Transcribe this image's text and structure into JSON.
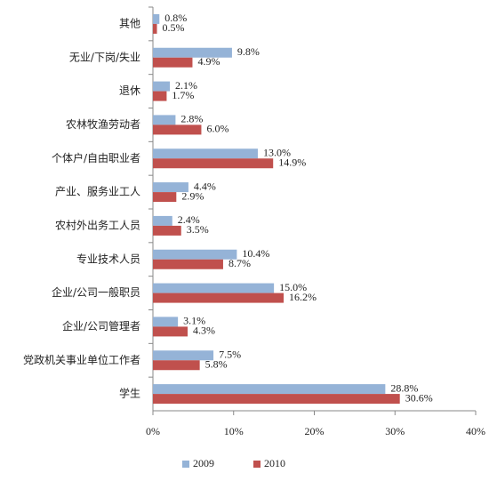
{
  "chart_data": {
    "type": "hbar",
    "categories": [
      "其他",
      "无业/下岗/失业",
      "退休",
      "农林牧渔劳动者",
      "个体户/自由职业者",
      "产业、服务业工人",
      "农村外出务工人员",
      "专业技术人员",
      "企业/公司一般职员",
      "企业/公司管理者",
      "党政机关事业单位工作者",
      "学生"
    ],
    "series": [
      {
        "name": "2009",
        "color": "#95b3d7",
        "values": [
          0.8,
          9.8,
          2.1,
          2.8,
          13.0,
          4.4,
          2.4,
          10.4,
          15.0,
          3.1,
          7.5,
          28.8
        ],
        "value_labels": [
          "0.8%",
          "9.8%",
          "2.1%",
          "2.8%",
          "13.0%",
          "4.4%",
          "2.4%",
          "10.4%",
          "15.0%",
          "3.1%",
          "7.5%",
          "28.8%"
        ]
      },
      {
        "name": "2010",
        "color": "#c0504d",
        "values": [
          0.5,
          4.9,
          1.7,
          6.0,
          14.9,
          2.9,
          3.5,
          8.7,
          16.2,
          4.3,
          5.8,
          30.6
        ],
        "value_labels": [
          "0.5%",
          "4.9%",
          "1.7%",
          "6.0%",
          "14.9%",
          "2.9%",
          "3.5%",
          "8.7%",
          "16.2%",
          "4.3%",
          "5.8%",
          "30.6%"
        ]
      }
    ],
    "xlim": [
      0,
      40
    ],
    "xticks": [
      {
        "value": 0,
        "label": "0%"
      },
      {
        "value": 10,
        "label": "10%"
      },
      {
        "value": 20,
        "label": "20%"
      },
      {
        "value": 30,
        "label": "30%"
      },
      {
        "value": 40,
        "label": "40%"
      }
    ],
    "legend": "bottom"
  }
}
